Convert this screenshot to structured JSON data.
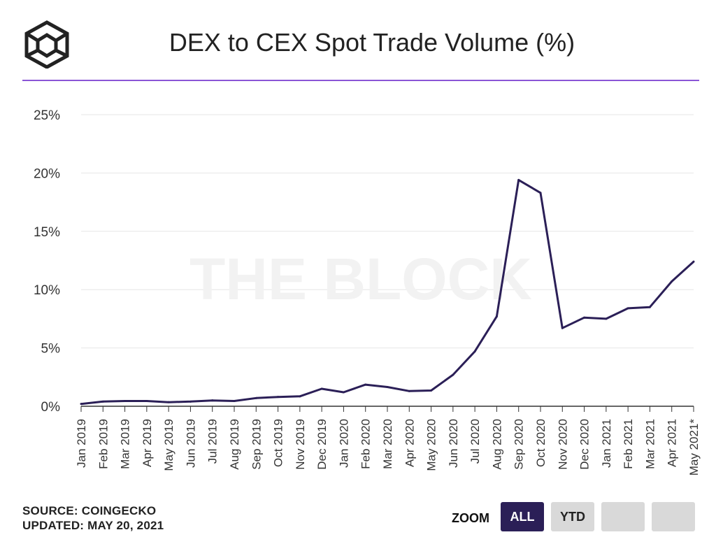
{
  "header": {
    "title": "DEX to CEX Spot Trade Volume (%)",
    "logo_icon": "the-block-cube-logo"
  },
  "watermark": "THE BLOCK",
  "footer": {
    "source": "SOURCE: COINGECKO",
    "updated": "UPDATED: MAY 20, 2021"
  },
  "zoom": {
    "label": "ZOOM",
    "buttons": [
      {
        "label": "ALL",
        "active": true
      },
      {
        "label": "YTD",
        "active": false
      },
      {
        "label": "",
        "active": false
      },
      {
        "label": "",
        "active": false
      }
    ]
  },
  "colors": {
    "line": "#2b1f57",
    "accent": "#8a55d6",
    "grid": "#e6e6e6",
    "active_button": "#2b1f57",
    "inactive_button": "#d9d9d9"
  },
  "chart_data": {
    "type": "line",
    "title": "DEX to CEX Spot Trade Volume (%)",
    "xlabel": "",
    "ylabel": "",
    "ylim": [
      0,
      25
    ],
    "yticks": [
      "0%",
      "5%",
      "10%",
      "15%",
      "20%",
      "25%"
    ],
    "grid": true,
    "categories": [
      "Jan 2019",
      "Feb 2019",
      "Mar 2019",
      "Apr 2019",
      "May 2019",
      "Jun 2019",
      "Jul 2019",
      "Aug 2019",
      "Sep 2019",
      "Oct 2019",
      "Nov 2019",
      "Dec 2019",
      "Jan 2020",
      "Feb 2020",
      "Mar 2020",
      "Apr 2020",
      "May 2020",
      "Jun 2020",
      "Jul 2020",
      "Aug 2020",
      "Sep 2020",
      "Oct 2020",
      "Nov 2020",
      "Dec 2020",
      "Jan 2021",
      "Feb 2021",
      "Mar 2021",
      "Apr 2021",
      "May 2021*"
    ],
    "series": [
      {
        "values": [
          0.2,
          0.4,
          0.45,
          0.45,
          0.35,
          0.4,
          0.5,
          0.45,
          0.7,
          0.8,
          0.85,
          1.5,
          1.2,
          1.85,
          1.65,
          1.3,
          1.35,
          2.7,
          4.7,
          7.7,
          19.4,
          18.3,
          6.7,
          7.6,
          7.5,
          8.4,
          8.5,
          10.7,
          12.4
        ]
      }
    ]
  }
}
